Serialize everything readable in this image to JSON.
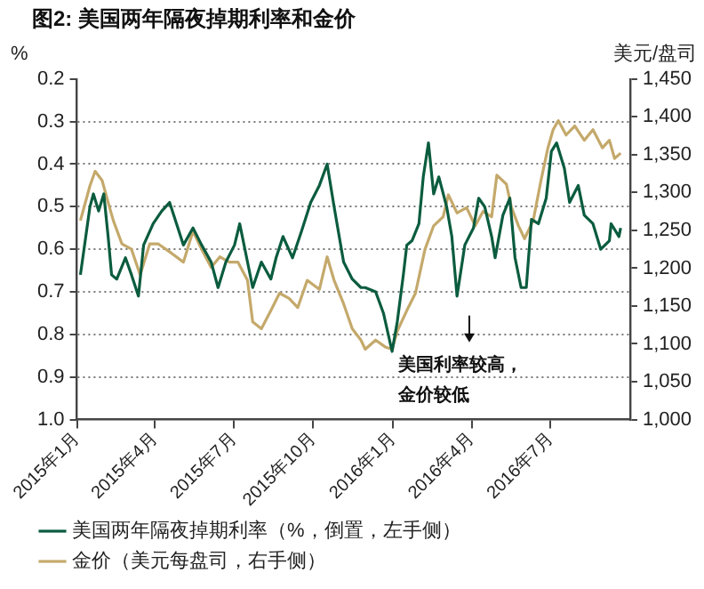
{
  "chart_data": {
    "type": "line",
    "title": "图2: 美国两年隔夜掉期利率和金价",
    "ylabel": "%",
    "y2label": "美元/盘司",
    "xlim": [
      "2015-01-01",
      "2016-10-01"
    ],
    "xticks": [
      {
        "value": "2015-01-01",
        "label": "2015年1月"
      },
      {
        "value": "2015-04-01",
        "label": "2015年4月"
      },
      {
        "value": "2015-07-01",
        "label": "2015年7月"
      },
      {
        "value": "2015-10-01",
        "label": "2015年10月"
      },
      {
        "value": "2016-01-01",
        "label": "2016年1月"
      },
      {
        "value": "2016-04-01",
        "label": "2016年4月"
      },
      {
        "value": "2016-07-01",
        "label": "2016年7月"
      }
    ],
    "ylim": [
      1.0,
      0.2
    ],
    "yticks": [
      0.2,
      0.3,
      0.4,
      0.5,
      0.6,
      0.7,
      0.8,
      0.9,
      {
        "value": 1.0,
        "label": "1.0"
      }
    ],
    "y2lim": [
      1000,
      1450
    ],
    "y2ticks": [
      {
        "value": 1000,
        "label": "1,000"
      },
      {
        "value": 1050,
        "label": "1,050"
      },
      {
        "value": 1100,
        "label": "1,100"
      },
      {
        "value": 1150,
        "label": "1,150"
      },
      {
        "value": 1200,
        "label": "1,200"
      },
      {
        "value": 1250,
        "label": "1,250"
      },
      {
        "value": 1300,
        "label": "1,300"
      },
      {
        "value": 1350,
        "label": "1,350"
      },
      {
        "value": 1400,
        "label": "1,400"
      },
      {
        "value": 1450,
        "label": "1,450"
      }
    ],
    "grid": "y",
    "legend": "bottom",
    "marker": "none",
    "line_style": "solid",
    "annotations": [
      "美国利率较高，",
      "金价较低"
    ],
    "series": [
      {
        "name": "美国两年隔夜掉期利率（%，倒置，左手侧）",
        "color": "#0b5c3f",
        "x": [
          "2015-01-05",
          "2015-01-16",
          "2015-01-20",
          "2015-01-26",
          "2015-02-01",
          "2015-02-06",
          "2015-02-10",
          "2015-02-16",
          "2015-02-26",
          "2015-03-05",
          "2015-03-13",
          "2015-03-19",
          "2015-03-30",
          "2015-04-09",
          "2015-04-18",
          "2015-04-26",
          "2015-05-04",
          "2015-05-15",
          "2015-05-25",
          "2015-06-05",
          "2015-06-13",
          "2015-06-22",
          "2015-07-02",
          "2015-07-08",
          "2015-07-17",
          "2015-07-23",
          "2015-08-02",
          "2015-08-13",
          "2015-08-19",
          "2015-08-27",
          "2015-09-07",
          "2015-09-17",
          "2015-09-28",
          "2015-10-08",
          "2015-10-17",
          "2015-10-25",
          "2015-11-05",
          "2015-11-15",
          "2015-11-25",
          "2015-11-30",
          "2015-12-12",
          "2015-12-21",
          "2015-12-31",
          "2016-01-06",
          "2016-01-13",
          "2016-01-17",
          "2016-01-23",
          "2016-01-31",
          "2016-02-05",
          "2016-02-11",
          "2016-02-17",
          "2016-02-23",
          "2016-03-03",
          "2016-03-09",
          "2016-03-15",
          "2016-03-24",
          "2016-04-03",
          "2016-04-09",
          "2016-04-16",
          "2016-04-24",
          "2016-04-28",
          "2016-05-07",
          "2016-05-15",
          "2016-05-21",
          "2016-05-28",
          "2016-06-03",
          "2016-06-09",
          "2016-06-17",
          "2016-06-26",
          "2016-07-02",
          "2016-07-08",
          "2016-07-17",
          "2016-07-23",
          "2016-08-02",
          "2016-08-09",
          "2016-08-19",
          "2016-08-28",
          "2016-09-07",
          "2016-09-09",
          "2016-09-18",
          "2016-09-20"
        ],
        "values": [
          0.66,
          0.5,
          0.47,
          0.51,
          0.47,
          0.57,
          0.66,
          0.67,
          0.62,
          0.66,
          0.71,
          0.59,
          0.54,
          0.51,
          0.49,
          0.54,
          0.59,
          0.55,
          0.59,
          0.63,
          0.69,
          0.63,
          0.59,
          0.54,
          0.63,
          0.69,
          0.63,
          0.67,
          0.62,
          0.57,
          0.62,
          0.56,
          0.49,
          0.45,
          0.4,
          0.5,
          0.63,
          0.67,
          0.69,
          0.69,
          0.7,
          0.75,
          0.84,
          0.77,
          0.66,
          0.59,
          0.58,
          0.54,
          0.43,
          0.35,
          0.47,
          0.43,
          0.5,
          0.57,
          0.71,
          0.59,
          0.55,
          0.48,
          0.5,
          0.57,
          0.62,
          0.52,
          0.48,
          0.62,
          0.69,
          0.69,
          0.53,
          0.54,
          0.48,
          0.37,
          0.35,
          0.41,
          0.49,
          0.45,
          0.52,
          0.54,
          0.6,
          0.58,
          0.54,
          0.57,
          0.55
        ]
      },
      {
        "name": "金价（美元每盘司，右手侧）",
        "color": "#c4a96b",
        "axis": "y2",
        "x": [
          "2015-01-05",
          "2015-01-16",
          "2015-01-22",
          "2015-01-30",
          "2015-02-06",
          "2015-02-12",
          "2015-02-22",
          "2015-03-05",
          "2015-03-15",
          "2015-03-26",
          "2015-04-05",
          "2015-04-20",
          "2015-05-04",
          "2015-05-15",
          "2015-05-25",
          "2015-06-05",
          "2015-06-15",
          "2015-06-26",
          "2015-07-06",
          "2015-07-17",
          "2015-07-23",
          "2015-08-02",
          "2015-08-13",
          "2015-08-23",
          "2015-09-03",
          "2015-09-13",
          "2015-09-24",
          "2015-10-08",
          "2015-10-17",
          "2015-10-25",
          "2015-11-05",
          "2015-11-15",
          "2015-11-25",
          "2015-11-30",
          "2015-12-12",
          "2015-12-23",
          "2015-12-31",
          "2016-01-06",
          "2016-01-17",
          "2016-01-27",
          "2016-02-07",
          "2016-02-17",
          "2016-02-28",
          "2016-03-05",
          "2016-03-15",
          "2016-03-26",
          "2016-04-05",
          "2016-04-14",
          "2016-04-24",
          "2016-04-30",
          "2016-05-11",
          "2016-05-17",
          "2016-05-25",
          "2016-06-01",
          "2016-06-11",
          "2016-06-20",
          "2016-06-28",
          "2016-07-04",
          "2016-07-10",
          "2016-07-19",
          "2016-07-29",
          "2016-08-09",
          "2016-08-19",
          "2016-08-30",
          "2016-09-07",
          "2016-09-13",
          "2016-09-20"
        ],
        "values": [
          1263,
          1309,
          1328,
          1316,
          1287,
          1263,
          1232,
          1225,
          1191,
          1232,
          1232,
          1220,
          1208,
          1249,
          1225,
          1201,
          1215,
          1208,
          1208,
          1184,
          1129,
          1120,
          1144,
          1167,
          1160,
          1148,
          1184,
          1172,
          1215,
          1184,
          1153,
          1120,
          1105,
          1093,
          1105,
          1096,
          1093,
          1117,
          1144,
          1167,
          1225,
          1256,
          1268,
          1297,
          1273,
          1280,
          1256,
          1275,
          1268,
          1323,
          1311,
          1280,
          1256,
          1239,
          1263,
          1316,
          1359,
          1383,
          1395,
          1376,
          1388,
          1369,
          1383,
          1359,
          1369,
          1345,
          1352
        ]
      }
    ]
  }
}
